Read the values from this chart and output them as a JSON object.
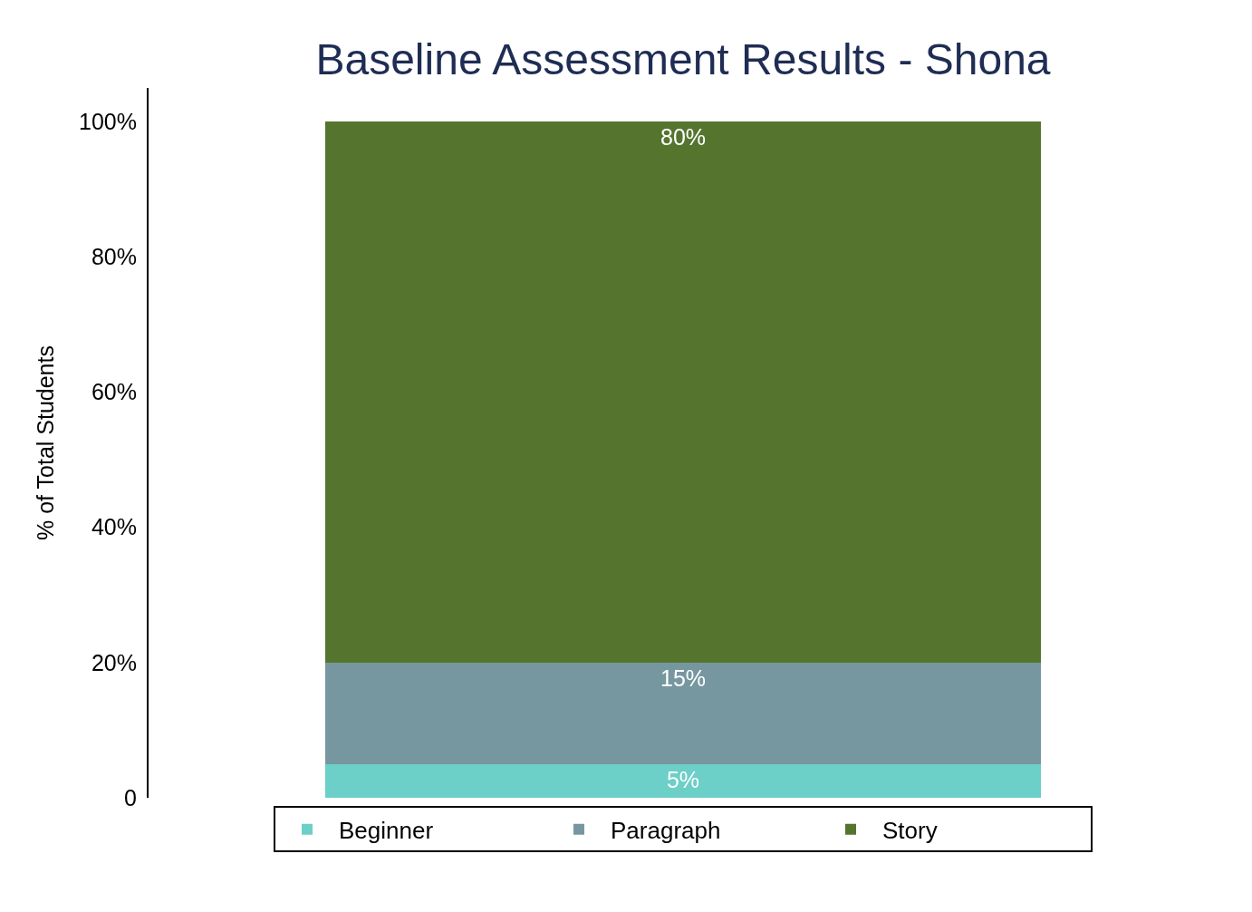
{
  "chart_data": {
    "type": "bar",
    "title": "Baseline Assessment Results - Shona",
    "ylabel": "% of Total Students",
    "categories": [
      null
    ],
    "stacked": true,
    "series": [
      {
        "name": "Beginner",
        "color": "#6ccfc8",
        "values": [
          5
        ],
        "value_labels": [
          "5%"
        ]
      },
      {
        "name": "Paragraph",
        "color": "#7797a0",
        "values": [
          15
        ],
        "value_labels": [
          "15%"
        ]
      },
      {
        "name": "Story",
        "color": "#55752f",
        "values": [
          80
        ],
        "value_labels": [
          "80%"
        ]
      }
    ],
    "ylim": [
      0,
      105
    ],
    "yticks": [
      0,
      {
        "value": 20,
        "label": "20%"
      },
      {
        "value": 40,
        "label": "40%"
      },
      {
        "value": 60,
        "label": "60%"
      },
      {
        "value": 80,
        "label": "80%"
      },
      {
        "value": 100,
        "label": "100%"
      }
    ],
    "legend": "bottom",
    "tick_labels": "y"
  }
}
